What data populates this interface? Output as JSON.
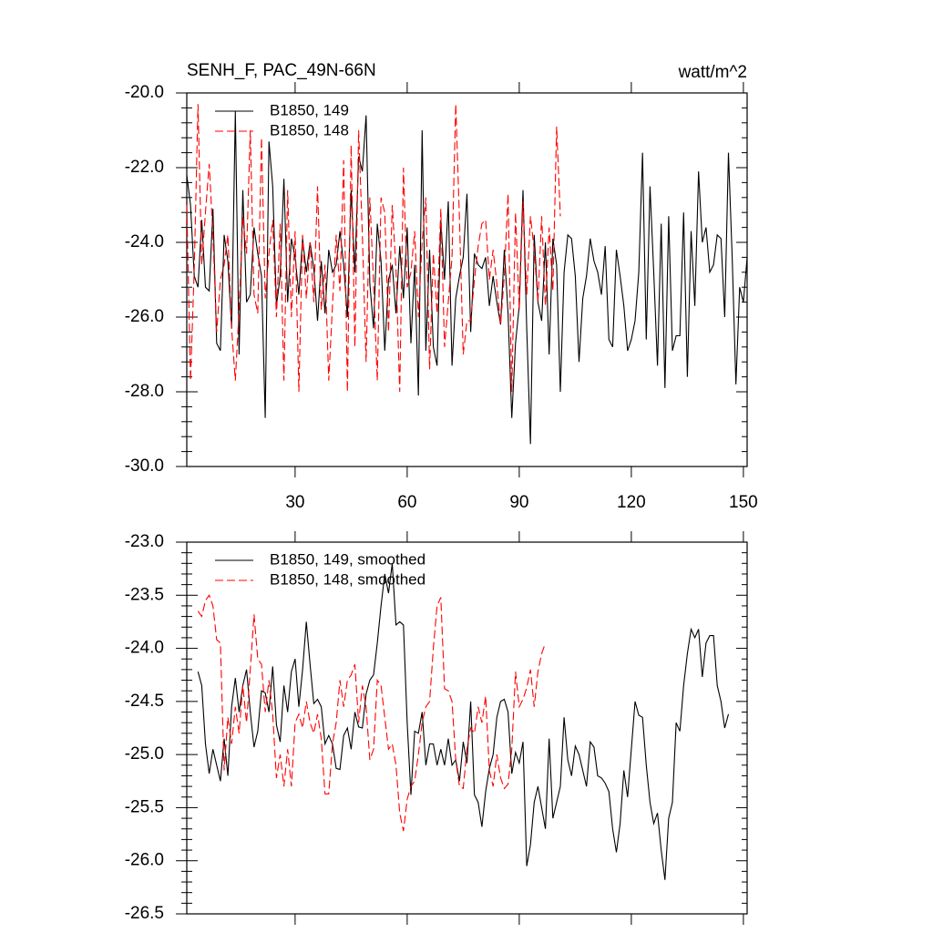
{
  "chart_data": [
    {
      "type": "line",
      "title": "SENH_F, PAC_49N-66N",
      "unit_label": "watt/m^2",
      "xlim": [
        1,
        151
      ],
      "xticks": [
        30,
        60,
        90,
        120,
        150
      ],
      "show_xtick_labels": true,
      "ylim": [
        -30,
        -20
      ],
      "yticks": [
        {
          "value": -30,
          "label": "-30.0"
        },
        {
          "value": -28,
          "label": "-28.0"
        },
        {
          "value": -26,
          "label": "-26.0"
        },
        {
          "value": -24,
          "label": "-24.0"
        },
        {
          "value": -22,
          "label": "-22.0"
        },
        {
          "value": -20,
          "label": "-20.0"
        }
      ],
      "series": [
        {
          "name": "B1850, 149",
          "color": "#000000",
          "line_style": "solid",
          "x": [
            1,
            2,
            3,
            4,
            5,
            6,
            7,
            8,
            9,
            10,
            11,
            12,
            13,
            14,
            15,
            16,
            17,
            18,
            19,
            20,
            21,
            22,
            23,
            24,
            25,
            26,
            27,
            28,
            29,
            30,
            31,
            32,
            33,
            34,
            35,
            36,
            37,
            38,
            39,
            40,
            41,
            42,
            43,
            44,
            45,
            46,
            47,
            48,
            49,
            50,
            51,
            52,
            53,
            54,
            55,
            56,
            57,
            58,
            59,
            60,
            61,
            62,
            63,
            64,
            65,
            66,
            67,
            68,
            69,
            70,
            71,
            72,
            73,
            74,
            75,
            76,
            77,
            78,
            79,
            80,
            81,
            82,
            83,
            84,
            85,
            86,
            87,
            88,
            89,
            90,
            91,
            92,
            93,
            94,
            95,
            96,
            97,
            98,
            99,
            100,
            101,
            102,
            103,
            104,
            105,
            106,
            107,
            108,
            109,
            110,
            111,
            112,
            113,
            114,
            115,
            116,
            117,
            118,
            119,
            120,
            121,
            122,
            123,
            124,
            125,
            126,
            127,
            128,
            129,
            130,
            131,
            132,
            133,
            134,
            135,
            136,
            137,
            138,
            139,
            140,
            141,
            142,
            143,
            144,
            145,
            146,
            147,
            148,
            149,
            150,
            151
          ],
          "values": [
            -22.2,
            -23.0,
            -24.9,
            -25.2,
            -23.4,
            -25.2,
            -25.3,
            -23.1,
            -26.7,
            -26.9,
            -23.8,
            -24.5,
            -26.3,
            -20.5,
            -27.0,
            -22.6,
            -25.6,
            -25.4,
            -23.6,
            -24.3,
            -24.9,
            -28.7,
            -21.3,
            -22.5,
            -25.7,
            -24.9,
            -22.3,
            -25.6,
            -23.9,
            -24.4,
            -25.4,
            -23.9,
            -24.8,
            -24.0,
            -24.7,
            -26.1,
            -24.5,
            -25.9,
            -24.2,
            -24.8,
            -24.6,
            -23.7,
            -24.6,
            -26.0,
            -22.6,
            -24.8,
            -21.7,
            -22.1,
            -20.6,
            -25.1,
            -26.3,
            -23.5,
            -24.5,
            -26.9,
            -25.0,
            -24.6,
            -25.9,
            -24.1,
            -25.5,
            -23.6,
            -26.7,
            -24.6,
            -28.1,
            -21.0,
            -26.9,
            -24.2,
            -26.8,
            -27.3,
            -23.4,
            -25.0,
            -22.9,
            -27.3,
            -25.5,
            -24.9,
            -24.4,
            -22.7,
            -26.4,
            -24.3,
            -24.6,
            -24.7,
            -24.4,
            -25.7,
            -24.9,
            -25.6,
            -26.2,
            -24.2,
            -25.9,
            -28.7,
            -26.7,
            -25.7,
            -22.6,
            -26.3,
            -29.4,
            -23.8,
            -25.6,
            -26.1,
            -24.0,
            -27.0,
            -23.9,
            -24.6,
            -28.0,
            -24.8,
            -23.8,
            -23.9,
            -24.9,
            -27.2,
            -25.5,
            -24.9,
            -23.9,
            -24.5,
            -24.8,
            -25.4,
            -24.1,
            -26.6,
            -26.8,
            -24.2,
            -24.9,
            -25.7,
            -26.9,
            -26.6,
            -26.1,
            -24.8,
            -21.6,
            -26.6,
            -22.5,
            -24.8,
            -27.3,
            -23.5,
            -27.9,
            -23.3,
            -26.9,
            -26.5,
            -26.5,
            -23.2,
            -27.6,
            -23.7,
            -25.7,
            -22.1,
            -24.0,
            -23.6,
            -24.8,
            -24.6,
            -23.8,
            -23.9,
            -26.0,
            -21.6,
            -24.4,
            -27.8,
            -25.2,
            -25.6,
            -24.4
          ]
        },
        {
          "name": "B1850, 148",
          "color": "#ff0000",
          "line_style": "dashed",
          "x": [
            1,
            2,
            3,
            4,
            5,
            6,
            7,
            8,
            9,
            10,
            11,
            12,
            13,
            14,
            15,
            16,
            17,
            18,
            19,
            20,
            21,
            22,
            23,
            24,
            25,
            26,
            27,
            28,
            29,
            30,
            31,
            32,
            33,
            34,
            35,
            36,
            37,
            38,
            39,
            40,
            41,
            42,
            43,
            44,
            45,
            46,
            47,
            48,
            49,
            50,
            51,
            52,
            53,
            54,
            55,
            56,
            57,
            58,
            59,
            60,
            61,
            62,
            63,
            64,
            65,
            66,
            67,
            68,
            69,
            70,
            71,
            72,
            73,
            74,
            75,
            76,
            77,
            78,
            79,
            80,
            81,
            82,
            83,
            84,
            85,
            86,
            87,
            88,
            89,
            90,
            91,
            92,
            93,
            94,
            95,
            96,
            97,
            98,
            99,
            100,
            101
          ],
          "values": [
            -23.0,
            -27.7,
            -24.7,
            -20.3,
            -24.6,
            -23.2,
            -21.9,
            -23.8,
            -26.4,
            -25.0,
            -24.6,
            -23.8,
            -26.3,
            -27.7,
            -25.8,
            -23.3,
            -24.3,
            -21.0,
            -25.4,
            -25.9,
            -21.2,
            -25.5,
            -24.3,
            -23.4,
            -26.0,
            -23.5,
            -27.7,
            -22.6,
            -26.0,
            -23.7,
            -28.0,
            -23.8,
            -25.5,
            -24.0,
            -25.6,
            -22.5,
            -25.8,
            -24.6,
            -27.7,
            -25.7,
            -23.8,
            -25.3,
            -21.8,
            -28.0,
            -21.4,
            -26.8,
            -21.0,
            -23.8,
            -27.2,
            -22.8,
            -25.1,
            -27.7,
            -22.8,
            -23.2,
            -26.4,
            -23.0,
            -24.7,
            -28.0,
            -22.0,
            -25.2,
            -24.8,
            -23.7,
            -26.0,
            -24.0,
            -22.8,
            -27.4,
            -24.3,
            -25.9,
            -23.1,
            -26.8,
            -25.6,
            -24.4,
            -20.3,
            -23.4,
            -27.0,
            -26.1,
            -26.1,
            -25.0,
            -24.1,
            -23.5,
            -23.4,
            -25.0,
            -24.2,
            -25.1,
            -26.2,
            -24.9,
            -22.7,
            -28.0,
            -23.2,
            -25.8,
            -22.9,
            -25.4,
            -23.3,
            -24.2,
            -25.6,
            -23.3,
            -25.7,
            -23.6,
            -25.3,
            -20.9,
            -23.3
          ]
        }
      ]
    },
    {
      "type": "line",
      "xlim": [
        1,
        151
      ],
      "xticks": [
        30,
        60,
        90,
        120,
        150
      ],
      "show_xtick_labels": false,
      "ylim": [
        -26.5,
        -23
      ],
      "yticks": [
        -26.5,
        {
          "value": -26,
          "label": "-26.0"
        },
        -25.5,
        {
          "value": -25,
          "label": "-25.0"
        },
        -24.5,
        {
          "value": -24,
          "label": "-24.0"
        },
        -23.5,
        {
          "value": -23,
          "label": "-23.0"
        }
      ],
      "series": [
        {
          "name": "B1850, 149, smoothed",
          "color": "#000000",
          "line_style": "solid",
          "x": [
            4,
            5,
            6,
            7,
            8,
            9,
            10,
            11,
            12,
            13,
            14,
            15,
            16,
            17,
            18,
            19,
            20,
            21,
            22,
            23,
            24,
            25,
            26,
            27,
            28,
            29,
            30,
            31,
            32,
            33,
            34,
            35,
            36,
            37,
            38,
            39,
            40,
            41,
            42,
            43,
            44,
            45,
            46,
            47,
            48,
            49,
            50,
            51,
            52,
            53,
            54,
            55,
            56,
            57,
            58,
            59,
            60,
            61,
            62,
            63,
            64,
            65,
            66,
            67,
            68,
            69,
            70,
            71,
            72,
            73,
            74,
            75,
            76,
            77,
            78,
            79,
            80,
            81,
            82,
            83,
            84,
            85,
            86,
            87,
            88,
            89,
            90,
            91,
            92,
            93,
            94,
            95,
            96,
            97,
            98,
            99,
            100,
            101,
            102,
            103,
            104,
            105,
            106,
            107,
            108,
            109,
            110,
            111,
            112,
            113,
            114,
            115,
            116,
            117,
            118,
            119,
            120,
            121,
            122,
            123,
            124,
            125,
            126,
            127,
            128,
            129,
            130,
            131,
            132,
            133,
            134,
            135,
            136,
            137,
            138,
            139,
            140,
            141,
            142,
            143,
            144,
            145,
            146
          ],
          "values": [
            -24.22,
            -24.35,
            -24.9,
            -25.18,
            -24.95,
            -25.1,
            -25.25,
            -24.85,
            -25.2,
            -24.55,
            -24.28,
            -24.6,
            -24.35,
            -24.2,
            -24.6,
            -24.93,
            -24.78,
            -24.4,
            -24.42,
            -24.6,
            -24.17,
            -24.72,
            -24.88,
            -24.35,
            -24.6,
            -24.22,
            -24.1,
            -24.55,
            -24.2,
            -23.75,
            -24.15,
            -24.52,
            -24.48,
            -24.55,
            -24.9,
            -24.82,
            -24.9,
            -25.13,
            -25.14,
            -24.82,
            -24.75,
            -24.95,
            -24.6,
            -24.74,
            -24.75,
            -24.43,
            -24.3,
            -24.25,
            -23.95,
            -23.6,
            -23.3,
            -23.48,
            -23.2,
            -23.78,
            -23.75,
            -23.78,
            -24.7,
            -25.38,
            -24.78,
            -24.8,
            -24.6,
            -25.1,
            -24.9,
            -24.9,
            -25.1,
            -24.95,
            -25.1,
            -24.85,
            -25.1,
            -25.05,
            -25.25,
            -24.88,
            -25.08,
            -24.5,
            -25.38,
            -25.45,
            -25.68,
            -25.35,
            -25.13,
            -25.0,
            -24.65,
            -24.5,
            -24.48,
            -24.6,
            -25.18,
            -24.98,
            -25.08,
            -24.88,
            -26.05,
            -25.85,
            -25.45,
            -25.3,
            -25.5,
            -25.7,
            -24.85,
            -25.6,
            -25.45,
            -25.3,
            -24.65,
            -25.05,
            -25.2,
            -24.92,
            -25.0,
            -25.15,
            -25.3,
            -24.88,
            -24.93,
            -25.2,
            -25.22,
            -25.27,
            -25.35,
            -25.7,
            -25.92,
            -25.65,
            -25.15,
            -25.4,
            -24.95,
            -24.5,
            -24.63,
            -24.65,
            -25.1,
            -25.45,
            -25.65,
            -25.55,
            -25.9,
            -26.18,
            -25.6,
            -25.45,
            -24.7,
            -24.78,
            -24.35,
            -24.05,
            -23.82,
            -23.9,
            -23.82,
            -24.27,
            -23.95,
            -23.88,
            -23.88,
            -24.35,
            -24.5,
            -24.75,
            -24.62
          ]
        },
        {
          "name": "B1850, 148, smoothed",
          "color": "#ff0000",
          "line_style": "dashed",
          "x": [
            4,
            5,
            6,
            7,
            8,
            9,
            10,
            11,
            12,
            13,
            14,
            15,
            16,
            17,
            18,
            19,
            20,
            21,
            22,
            23,
            24,
            25,
            26,
            27,
            28,
            29,
            30,
            31,
            32,
            33,
            34,
            35,
            36,
            37,
            38,
            39,
            40,
            41,
            42,
            43,
            44,
            45,
            46,
            47,
            48,
            49,
            50,
            51,
            52,
            53,
            54,
            55,
            56,
            57,
            58,
            59,
            60,
            61,
            62,
            63,
            64,
            65,
            66,
            67,
            68,
            69,
            70,
            71,
            72,
            73,
            74,
            75,
            76,
            77,
            78,
            79,
            80,
            81,
            82,
            83,
            84,
            85,
            86,
            87,
            88,
            89,
            90,
            91,
            92,
            93,
            94,
            95,
            96,
            97
          ],
          "values": [
            -23.65,
            -23.7,
            -23.55,
            -23.5,
            -23.6,
            -23.92,
            -23.95,
            -25.15,
            -24.65,
            -24.9,
            -24.55,
            -24.8,
            -24.35,
            -24.7,
            -24.2,
            -23.68,
            -24.1,
            -24.15,
            -24.6,
            -24.3,
            -24.62,
            -25.22,
            -25.0,
            -25.3,
            -24.95,
            -25.3,
            -24.7,
            -24.62,
            -24.75,
            -24.5,
            -24.7,
            -24.8,
            -24.62,
            -24.85,
            -25.37,
            -25.37,
            -24.9,
            -24.7,
            -24.3,
            -24.55,
            -24.3,
            -24.25,
            -24.15,
            -24.7,
            -24.35,
            -24.55,
            -25.05,
            -24.95,
            -24.3,
            -24.35,
            -24.65,
            -24.95,
            -24.9,
            -25.1,
            -25.55,
            -25.72,
            -25.42,
            -25.3,
            -25.25,
            -25.0,
            -24.7,
            -24.55,
            -24.5,
            -24.0,
            -23.6,
            -23.52,
            -24.38,
            -24.4,
            -24.5,
            -25.05,
            -25.3,
            -25.32,
            -24.95,
            -24.75,
            -24.8,
            -24.55,
            -24.7,
            -24.45,
            -25.15,
            -25.3,
            -25.0,
            -25.22,
            -25.32,
            -25.28,
            -24.95,
            -24.22,
            -24.55,
            -24.48,
            -24.37,
            -24.2,
            -24.55,
            -24.22,
            -24.05,
            -23.95
          ]
        }
      ]
    }
  ]
}
